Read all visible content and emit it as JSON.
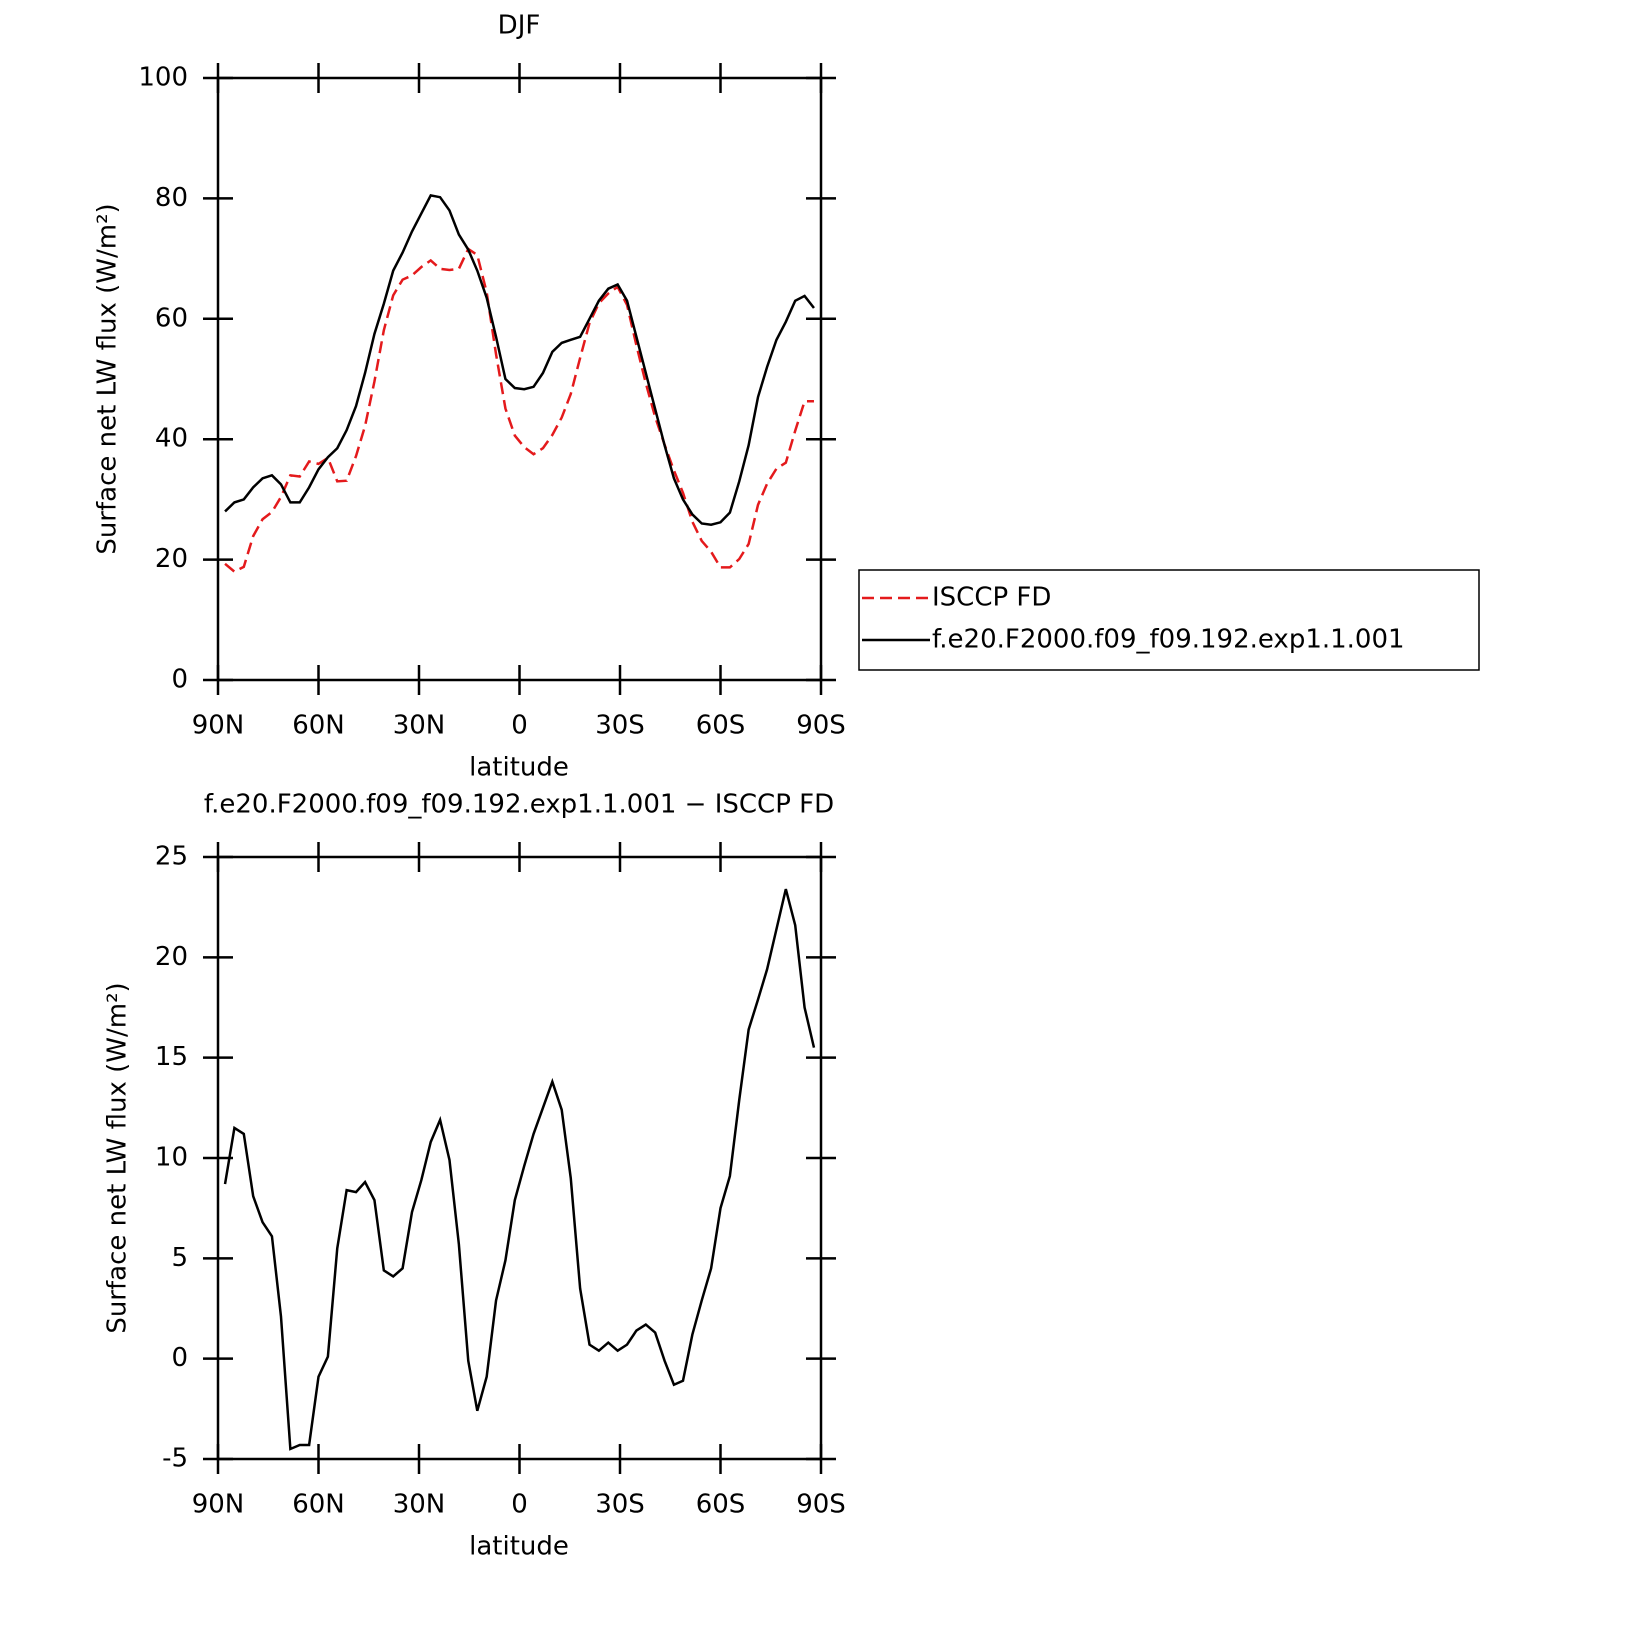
{
  "chart_data": [
    {
      "type": "line",
      "title": "DJF",
      "xlabel": "latitude",
      "ylabel": "Surface net LW flux (W/m²)",
      "x": [
        87.9,
        85.1,
        82.3,
        79.5,
        76.7,
        73.9,
        71.2,
        68.4,
        65.6,
        62.8,
        60.0,
        57.2,
        54.4,
        51.6,
        48.8,
        46.1,
        43.3,
        40.5,
        37.7,
        34.9,
        32.1,
        29.3,
        26.5,
        23.7,
        20.9,
        18.1,
        15.3,
        12.6,
        9.8,
        7.0,
        4.2,
        1.4,
        -1.4,
        -4.2,
        -7.0,
        -9.8,
        -12.6,
        -15.3,
        -18.1,
        -20.9,
        -23.7,
        -26.5,
        -29.3,
        -32.1,
        -34.9,
        -37.7,
        -40.5,
        -43.3,
        -46.1,
        -48.8,
        -51.6,
        -54.4,
        -57.2,
        -60.0,
        -62.8,
        -65.6,
        -68.4,
        -71.2,
        -73.9,
        -76.7,
        -79.5,
        -82.3,
        -85.1,
        -87.9
      ],
      "series": [
        {
          "name": "ISCCP FD",
          "color": "#e41a1c",
          "linestyle": "dashed",
          "values": [
            19.3,
            18.0,
            18.8,
            23.9,
            26.7,
            27.9,
            30.4,
            34.0,
            33.8,
            36.3,
            35.9,
            36.9,
            33.0,
            33.1,
            37.2,
            42.2,
            49.6,
            58.1,
            63.9,
            66.5,
            67.2,
            68.6,
            69.7,
            68.3,
            68.1,
            68.3,
            71.6,
            70.6,
            64.4,
            54.1,
            45.1,
            40.6,
            38.7,
            37.5,
            38.5,
            40.7,
            43.6,
            47.5,
            53.5,
            59.3,
            62.6,
            64.2,
            65.3,
            62.3,
            55.6,
            49.3,
            43.7,
            39.1,
            34.8,
            31.1,
            26.3,
            23.1,
            21.3,
            18.7,
            18.7,
            20.1,
            22.6,
            29.1,
            32.6,
            35.1,
            36.1,
            41.4,
            46.3,
            46.3
          ]
        },
        {
          "name": "f.e20.F2000.f09_f09.192.exp1.1.001",
          "color": "#000000",
          "linestyle": "solid",
          "values": [
            28,
            29.5,
            30,
            32,
            33.5,
            34,
            32.5,
            29.5,
            29.5,
            32,
            35,
            37,
            38.5,
            41.5,
            45.5,
            51,
            57.5,
            62.5,
            68,
            71,
            74.5,
            77.5,
            80.5,
            80.2,
            78,
            74,
            71.5,
            68,
            63.5,
            57,
            50,
            48.5,
            48.3,
            48.7,
            51,
            54.5,
            56,
            56.5,
            57,
            60,
            63,
            65,
            65.7,
            63,
            57,
            51,
            45,
            39,
            33.5,
            30,
            27.5,
            26,
            25.8,
            26.2,
            27.8,
            33,
            39,
            47,
            52,
            56.5,
            59.5,
            63,
            63.8,
            61.8
          ]
        }
      ],
      "xlim": [
        90,
        -90
      ],
      "xticks": [
        {
          "value": 90,
          "label": "90N"
        },
        {
          "value": 60,
          "label": "60N"
        },
        {
          "value": 30,
          "label": "30N"
        },
        0,
        {
          "value": -30,
          "label": "30S"
        },
        {
          "value": -60,
          "label": "60S"
        },
        {
          "value": -90,
          "label": "90S"
        }
      ],
      "ylim": [
        0,
        100
      ],
      "yticks": [
        0,
        20,
        40,
        60,
        80,
        100
      ]
    },
    {
      "type": "line",
      "title": "f.e20.F2000.f09_f09.192.exp1.1.001 − ISCCP FD",
      "xlabel": "latitude",
      "ylabel": "Surface net LW flux (W/m²)",
      "x": [
        87.9,
        85.1,
        82.3,
        79.5,
        76.7,
        73.9,
        71.2,
        68.4,
        65.6,
        62.8,
        60.0,
        57.2,
        54.4,
        51.6,
        48.8,
        46.1,
        43.3,
        40.5,
        37.7,
        34.9,
        32.1,
        29.3,
        26.5,
        23.7,
        20.9,
        18.1,
        15.3,
        12.6,
        9.8,
        7.0,
        4.2,
        1.4,
        -1.4,
        -4.2,
        -7.0,
        -9.8,
        -12.6,
        -15.3,
        -18.1,
        -20.9,
        -23.7,
        -26.5,
        -29.3,
        -32.1,
        -34.9,
        -37.7,
        -40.5,
        -43.3,
        -46.1,
        -48.8,
        -51.6,
        -54.4,
        -57.2,
        -60.0,
        -62.8,
        -65.6,
        -68.4,
        -71.2,
        -73.9,
        -76.7,
        -79.5,
        -82.3,
        -85.1,
        -87.9
      ],
      "color": "#000000",
      "values": [
        8.7,
        11.5,
        11.2,
        8.1,
        6.8,
        6.1,
        2.1,
        -4.5,
        -4.3,
        -4.3,
        -0.9,
        0.1,
        5.5,
        8.4,
        8.3,
        8.8,
        7.9,
        4.4,
        4.1,
        4.5,
        7.3,
        8.9,
        10.8,
        11.9,
        9.9,
        5.7,
        -0.1,
        -2.6,
        -0.9,
        2.9,
        4.9,
        7.9,
        9.6,
        11.2,
        12.5,
        13.8,
        12.4,
        9.0,
        3.5,
        0.7,
        0.4,
        0.8,
        0.4,
        0.7,
        1.4,
        1.7,
        1.3,
        -0.1,
        -1.3,
        -1.1,
        1.2,
        2.9,
        4.5,
        7.5,
        9.1,
        12.9,
        16.4,
        17.9,
        19.4,
        21.4,
        23.4,
        21.6,
        17.5,
        15.5
      ],
      "xlim": [
        90,
        -90
      ],
      "xticks": [
        {
          "value": 90,
          "label": "90N"
        },
        {
          "value": 60,
          "label": "60N"
        },
        {
          "value": 30,
          "label": "30N"
        },
        0,
        {
          "value": -30,
          "label": "30S"
        },
        {
          "value": -60,
          "label": "60S"
        },
        {
          "value": -90,
          "label": "90S"
        }
      ],
      "ylim": [
        -5,
        25
      ],
      "yticks": [
        -5,
        0,
        5,
        10,
        15,
        20,
        25
      ]
    }
  ]
}
